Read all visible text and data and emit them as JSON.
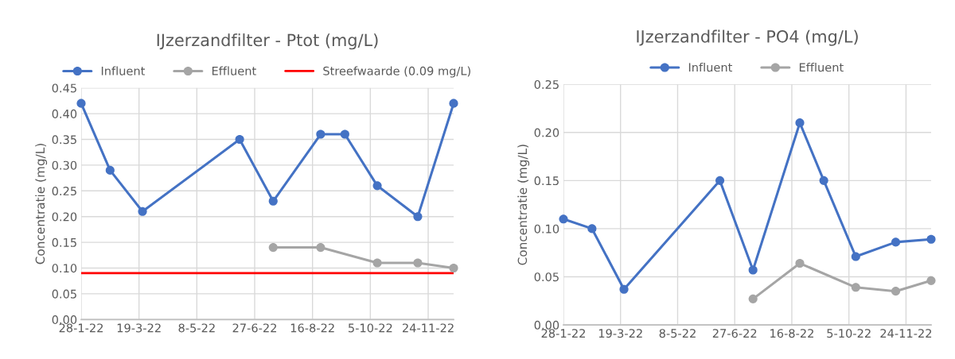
{
  "chart_data": [
    {
      "type": "line",
      "title": "IJzerzandfilter - Ptot (mg/L)",
      "ylabel": "Concentratie (mg/L)",
      "x": [
        "2022-01-28",
        "2022-02-22",
        "2022-03-22",
        "2022-06-14",
        "2022-07-13",
        "2022-08-23",
        "2022-09-13",
        "2022-10-11",
        "2022-11-15",
        "2022-12-16"
      ],
      "series": [
        {
          "name": "Influent",
          "color": "#4472c4",
          "values": [
            0.42,
            0.29,
            0.21,
            0.35,
            0.23,
            0.36,
            0.36,
            0.26,
            0.2,
            0.42
          ]
        },
        {
          "name": "Effluent",
          "color": "#a5a5a5",
          "values": [
            null,
            null,
            null,
            null,
            0.14,
            0.14,
            null,
            0.11,
            0.11,
            0.1
          ]
        }
      ],
      "ref_lines": [
        {
          "axis": "y",
          "value": 0.09,
          "label": "Streefwaarde (0.09 mg/L)",
          "color": "#ff0000"
        }
      ],
      "xlim": [
        "2022-01-28",
        "2022-12-16"
      ],
      "xticks": [
        {
          "value": "2022-01-28",
          "label": "28-1-22"
        },
        {
          "value": "2022-03-19",
          "label": "19-3-22"
        },
        {
          "value": "2022-05-08",
          "label": "8-5-22"
        },
        {
          "value": "2022-06-27",
          "label": "27-6-22"
        },
        {
          "value": "2022-08-16",
          "label": "16-8-22"
        },
        {
          "value": "2022-10-05",
          "label": "5-10-22"
        },
        {
          "value": "2022-11-24",
          "label": "24-11-22"
        }
      ],
      "ylim": [
        0,
        0.45
      ],
      "yticks": [
        {
          "value": 0,
          "label": "0.00"
        },
        {
          "value": 0.05,
          "label": "0.05"
        },
        {
          "value": 0.1,
          "label": "0.10"
        },
        {
          "value": 0.15,
          "label": "0.15"
        },
        {
          "value": 0.2,
          "label": "0.20"
        },
        {
          "value": 0.25,
          "label": "0.25"
        },
        {
          "value": 0.3,
          "label": "0.30"
        },
        {
          "value": 0.35,
          "label": "0.35"
        },
        {
          "value": 0.4,
          "label": "0.40"
        },
        {
          "value": 0.45,
          "label": "0.45"
        }
      ],
      "grid": true,
      "legend": "top",
      "marker": "circle",
      "line_style": "solid"
    },
    {
      "type": "line",
      "title": "IJzerzandfilter - PO4 (mg/L)",
      "ylabel": "Concentratie (mg/L)",
      "x": [
        "2022-01-28",
        "2022-02-22",
        "2022-03-22",
        "2022-06-14",
        "2022-07-13",
        "2022-08-23",
        "2022-09-13",
        "2022-10-11",
        "2022-11-15",
        "2022-12-16"
      ],
      "series": [
        {
          "name": "Influent",
          "color": "#4472c4",
          "values": [
            0.11,
            0.1,
            0.037,
            0.15,
            0.057,
            0.21,
            0.15,
            0.071,
            0.086,
            0.089
          ]
        },
        {
          "name": "Effluent",
          "color": "#a5a5a5",
          "values": [
            null,
            null,
            null,
            null,
            0.027,
            0.064,
            null,
            0.039,
            0.035,
            0.046
          ]
        }
      ],
      "xlim": [
        "2022-01-28",
        "2022-12-16"
      ],
      "xticks": [
        {
          "value": "2022-01-28",
          "label": "28-1-22"
        },
        {
          "value": "2022-03-19",
          "label": "19-3-22"
        },
        {
          "value": "2022-05-08",
          "label": "8-5-22"
        },
        {
          "value": "2022-06-27",
          "label": "27-6-22"
        },
        {
          "value": "2022-08-16",
          "label": "16-8-22"
        },
        {
          "value": "2022-10-05",
          "label": "5-10-22"
        },
        {
          "value": "2022-11-24",
          "label": "24-11-22"
        }
      ],
      "ylim": [
        0,
        0.25
      ],
      "yticks": [
        {
          "value": 0,
          "label": "0.00"
        },
        {
          "value": 0.05,
          "label": "0.05"
        },
        {
          "value": 0.1,
          "label": "0.10"
        },
        {
          "value": 0.15,
          "label": "0.15"
        },
        {
          "value": 0.2,
          "label": "0.20"
        },
        {
          "value": 0.25,
          "label": "0.25"
        }
      ],
      "grid": true,
      "legend": "top",
      "marker": "circle",
      "line_style": "solid"
    }
  ]
}
